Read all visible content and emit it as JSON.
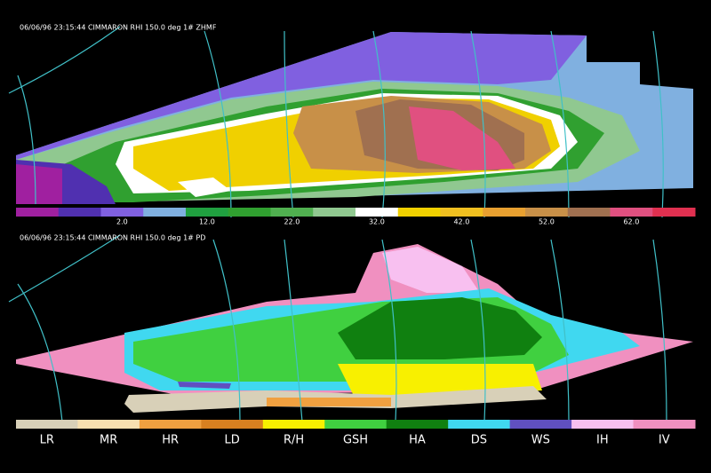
{
  "panels": [
    {
      "header": "06/06/96 23:15:44  CIMMARON RHI  150.0 deg   1# ZHMF",
      "colorbar": {
        "colors": [
          "#a020a0",
          "#5030b0",
          "#8060e0",
          "#80b0e0",
          "#20a040",
          "#30a030",
          "#50b050",
          "#90c890",
          "#ffffff",
          "#f0d000",
          "#f0c020",
          "#e8a030",
          "#c89048",
          "#a07050",
          "#e05080",
          "#e03050"
        ],
        "labels": [
          "2.0",
          "12.0",
          "22.0",
          "32.0",
          "42.0",
          "52.0",
          "62.0"
        ]
      }
    },
    {
      "header": "06/06/96 23:15:44  CIMMARON RHI  150.0 deg   1# PD",
      "legend": [
        {
          "label": "LR",
          "color": "#d8d0b8"
        },
        {
          "label": "MR",
          "color": "#f8e0b0"
        },
        {
          "label": "HR",
          "color": "#f0a040"
        },
        {
          "label": "LD",
          "color": "#d88020"
        },
        {
          "label": "R/H",
          "color": "#f8f000"
        },
        {
          "label": "GSH",
          "color": "#40d040"
        },
        {
          "label": "HA",
          "color": "#108010"
        },
        {
          "label": "DS",
          "color": "#40d8f0"
        },
        {
          "label": "WS",
          "color": "#6050c0"
        },
        {
          "label": "IH",
          "color": "#f8c0f0"
        },
        {
          "label": "IV",
          "color": "#f090c0"
        }
      ]
    }
  ]
}
